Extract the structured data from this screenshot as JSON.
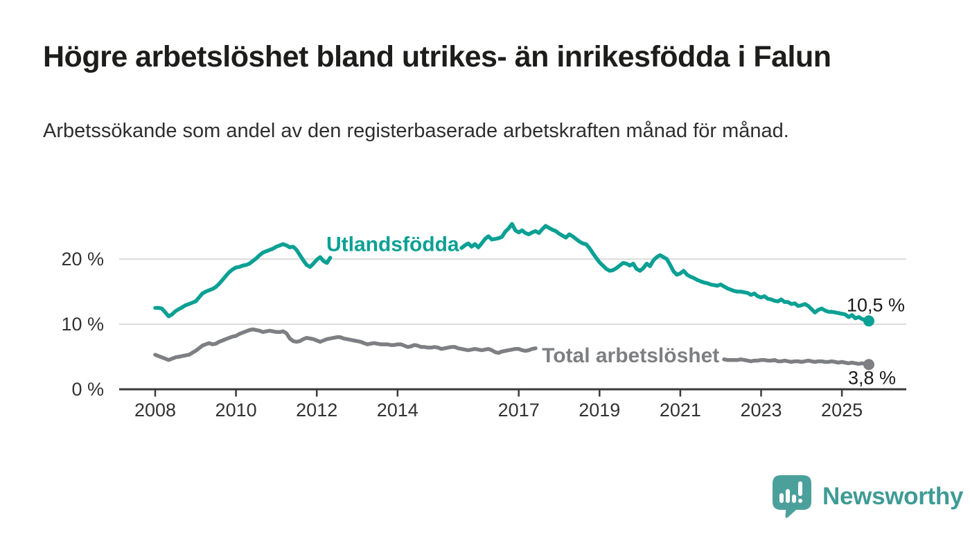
{
  "header": {
    "title": "Högre arbetslöshet bland utrikes- än inrikesfödda i Falun",
    "subtitle": "Arbetssökande som andel av den registerbaserade arbetskraften månad för månad."
  },
  "colors": {
    "teal": "#0ba094",
    "gray": "#7e7f82",
    "axis": "#3a3a3a",
    "grid": "#dcdcdc",
    "tick_text": "#333333",
    "callout_text": "#1a1a1a",
    "logo": "#3f9b95",
    "logo_bubble": "#4ca09b"
  },
  "chart_data": {
    "type": "line",
    "unit": "%",
    "grid": "horizontal",
    "x_axis": {
      "ticks": [
        {
          "value": 2008,
          "label": "2008"
        },
        {
          "value": 2010,
          "label": "2010"
        },
        {
          "value": 2012,
          "label": "2012"
        },
        {
          "value": 2014,
          "label": "2014"
        },
        {
          "value": 2017,
          "label": "2017"
        },
        {
          "value": 2019,
          "label": "2019"
        },
        {
          "value": 2021,
          "label": "2021"
        },
        {
          "value": 2023,
          "label": "2023"
        },
        {
          "value": 2025,
          "label": "2025"
        }
      ],
      "range": [
        2007.1,
        2026.6
      ]
    },
    "y_axis": {
      "ticks": [
        {
          "value": 0,
          "label": "0 %"
        },
        {
          "value": 10,
          "label": "10 %"
        },
        {
          "value": 20,
          "label": "20 %"
        }
      ],
      "range": [
        0,
        27
      ]
    },
    "series": [
      {
        "id": "utlandsfodda",
        "name": "Utlandsfödda",
        "color": "#0ba094",
        "inline_label": {
          "text": "Utlandsfödda",
          "x": 2013.88,
          "y": 21.2
        },
        "end_dot": {
          "x": 2025.667,
          "y": 10.5
        },
        "end_label": {
          "text": "10,5 %",
          "side": "above"
        },
        "segments": [
          {
            "start_year": 2008.0,
            "points_per_year": 12,
            "values": [
              12.5,
              12.5,
              12.4,
              11.8,
              11.2,
              11.5,
              12.0,
              12.3,
              12.6,
              12.9,
              13.1,
              13.3,
              13.5,
              14.1,
              14.7,
              15.0,
              15.2,
              15.4,
              15.7,
              16.2,
              16.8,
              17.4,
              18.0,
              18.4,
              18.7,
              18.8,
              19.0,
              19.1,
              19.3,
              19.7,
              20.1,
              20.6,
              21.0,
              21.2,
              21.4,
              21.6,
              21.9,
              22.1,
              22.3,
              22.1,
              21.8,
              21.9,
              21.4,
              20.6,
              19.8,
              19.1,
              18.8,
              19.3,
              19.9,
              20.3,
              19.7,
              19.4,
              20.2
            ]
          },
          {
            "start_year": 2015.583,
            "points_per_year": 12,
            "values": [
              21.7,
              22.1,
              22.4,
              21.9,
              22.3,
              21.8,
              22.4,
              23.1,
              23.5,
              23.0,
              23.1,
              23.2,
              23.4,
              24.2,
              24.7,
              25.4,
              24.4,
              24.1,
              24.4,
              24.0,
              23.8,
              24.1,
              24.3,
              24.0,
              24.6,
              25.1,
              24.8,
              24.5,
              24.3,
              23.9,
              23.6,
              23.3,
              23.8,
              23.5,
              23.1,
              22.7,
              22.4,
              22.3,
              21.7,
              20.9,
              20.2,
              19.5,
              19.0,
              18.5,
              18.2,
              18.3,
              18.6,
              19.0,
              19.4,
              19.3,
              19.0,
              19.3,
              18.5,
              18.2,
              18.6,
              19.3,
              18.9,
              19.8,
              20.3,
              20.6,
              20.3,
              20.0,
              19.1,
              18.1,
              17.6,
              17.8,
              18.2,
              17.6,
              17.3,
              17.1,
              16.8,
              16.6,
              16.4,
              16.3,
              16.1,
              16.0,
              15.9,
              16.1,
              15.8,
              15.5,
              15.3,
              15.1,
              15.0,
              15.0,
              14.9,
              14.8,
              14.5,
              14.7,
              14.3,
              14.1,
              14.3,
              13.9,
              13.8,
              13.6,
              13.5,
              13.8,
              13.4,
              13.4,
              13.1,
              13.2,
              12.8,
              12.9,
              13.1,
              12.8,
              12.3,
              11.8,
              12.2,
              12.4,
              12.1,
              11.9,
              11.9,
              11.8,
              11.7,
              11.6,
              11.5,
              11.1,
              11.4,
              10.9,
              11.1,
              10.8,
              10.6,
              10.5
            ]
          }
        ]
      },
      {
        "id": "total",
        "name": "Total arbetslöshet",
        "color": "#7e7f82",
        "inline_label": {
          "text": "Total arbetslöshet",
          "x": 2019.77,
          "y": 4.15
        },
        "end_dot": {
          "x": 2025.667,
          "y": 3.8
        },
        "end_label": {
          "text": "3,8 %",
          "side": "below"
        },
        "segments": [
          {
            "start_year": 2008.0,
            "points_per_year": 12,
            "values": [
              5.3,
              5.1,
              4.9,
              4.7,
              4.5,
              4.7,
              4.9,
              5.0,
              5.1,
              5.2,
              5.3,
              5.6,
              5.9,
              6.3,
              6.7,
              6.9,
              7.1,
              6.9,
              7.0,
              7.3,
              7.5,
              7.7,
              7.9,
              8.1,
              8.2,
              8.5,
              8.7,
              8.9,
              9.1,
              9.2,
              9.1,
              9.0,
              8.8,
              8.9,
              9.0,
              8.9,
              8.8,
              8.8,
              8.9,
              8.6,
              7.8,
              7.4,
              7.3,
              7.4,
              7.7,
              7.9,
              7.8,
              7.7,
              7.5,
              7.3,
              7.5,
              7.7,
              7.8,
              7.9,
              8.0,
              8.0,
              7.8,
              7.7,
              7.6,
              7.5,
              7.4,
              7.3,
              7.1,
              6.9,
              7.0,
              7.1,
              7.0,
              6.9,
              6.9,
              6.9,
              6.8,
              6.8,
              6.9,
              6.9,
              6.7,
              6.5,
              6.6,
              6.8,
              6.7,
              6.5,
              6.5,
              6.4,
              6.4,
              6.5,
              6.4,
              6.2,
              6.3,
              6.4,
              6.5,
              6.5,
              6.3,
              6.2,
              6.1,
              6.0,
              6.1,
              6.2,
              6.1,
              6.0,
              6.1,
              6.2,
              6.0,
              5.7,
              5.6,
              5.8,
              5.9,
              6.0,
              6.1,
              6.2,
              6.2,
              6.0,
              5.9,
              6.0,
              6.2,
              6.3
            ]
          },
          {
            "start_year": 2022.083,
            "points_per_year": 12,
            "values": [
              4.6,
              4.5,
              4.5,
              4.5,
              4.5,
              4.6,
              4.5,
              4.4,
              4.3,
              4.4,
              4.4,
              4.5,
              4.5,
              4.4,
              4.4,
              4.5,
              4.3,
              4.3,
              4.4,
              4.3,
              4.2,
              4.3,
              4.3,
              4.2,
              4.3,
              4.4,
              4.3,
              4.2,
              4.3,
              4.3,
              4.2,
              4.2,
              4.3,
              4.2,
              4.1,
              4.2,
              4.1,
              4.0,
              4.1,
              4.0,
              3.9,
              4.0,
              3.9,
              3.8
            ]
          }
        ]
      }
    ]
  },
  "logo": {
    "name": "Newsworthy",
    "icon": "newsworthy-speech-bubble-chart-icon"
  }
}
